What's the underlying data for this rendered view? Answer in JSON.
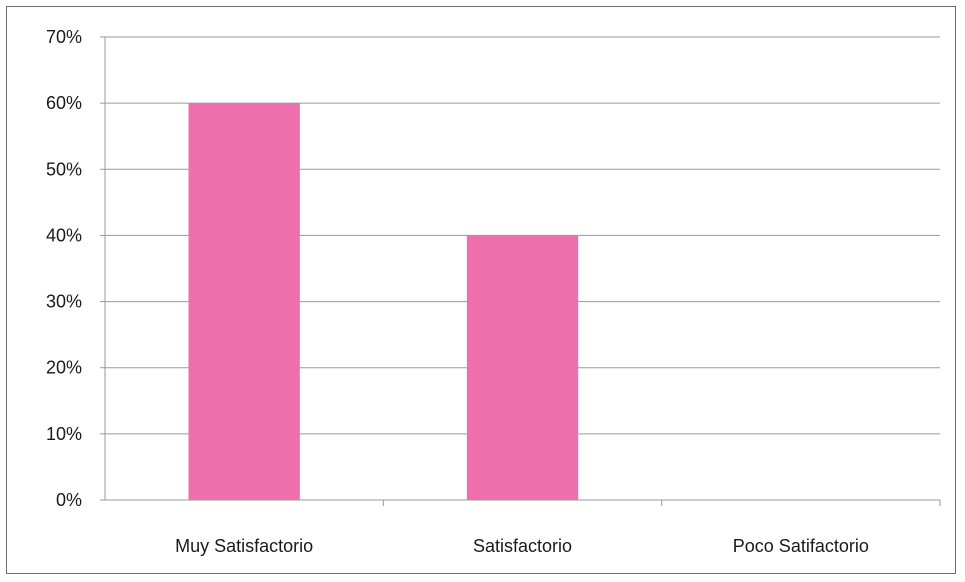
{
  "chart_data": {
    "type": "bar",
    "categories": [
      "Muy Satisfactorio",
      "Satisfactorio",
      "Poco Satifactorio"
    ],
    "values": [
      60,
      40,
      0
    ],
    "ylim": [
      0,
      70
    ],
    "yticks": [
      "0%",
      "10%",
      "20%",
      "30%",
      "40%",
      "50%",
      "60%",
      "70%"
    ],
    "grid": true,
    "legend": "none",
    "bar_color": "#ef6fae",
    "grid_color": "#9a9a9a",
    "axis_color": "#9a9a9a"
  }
}
